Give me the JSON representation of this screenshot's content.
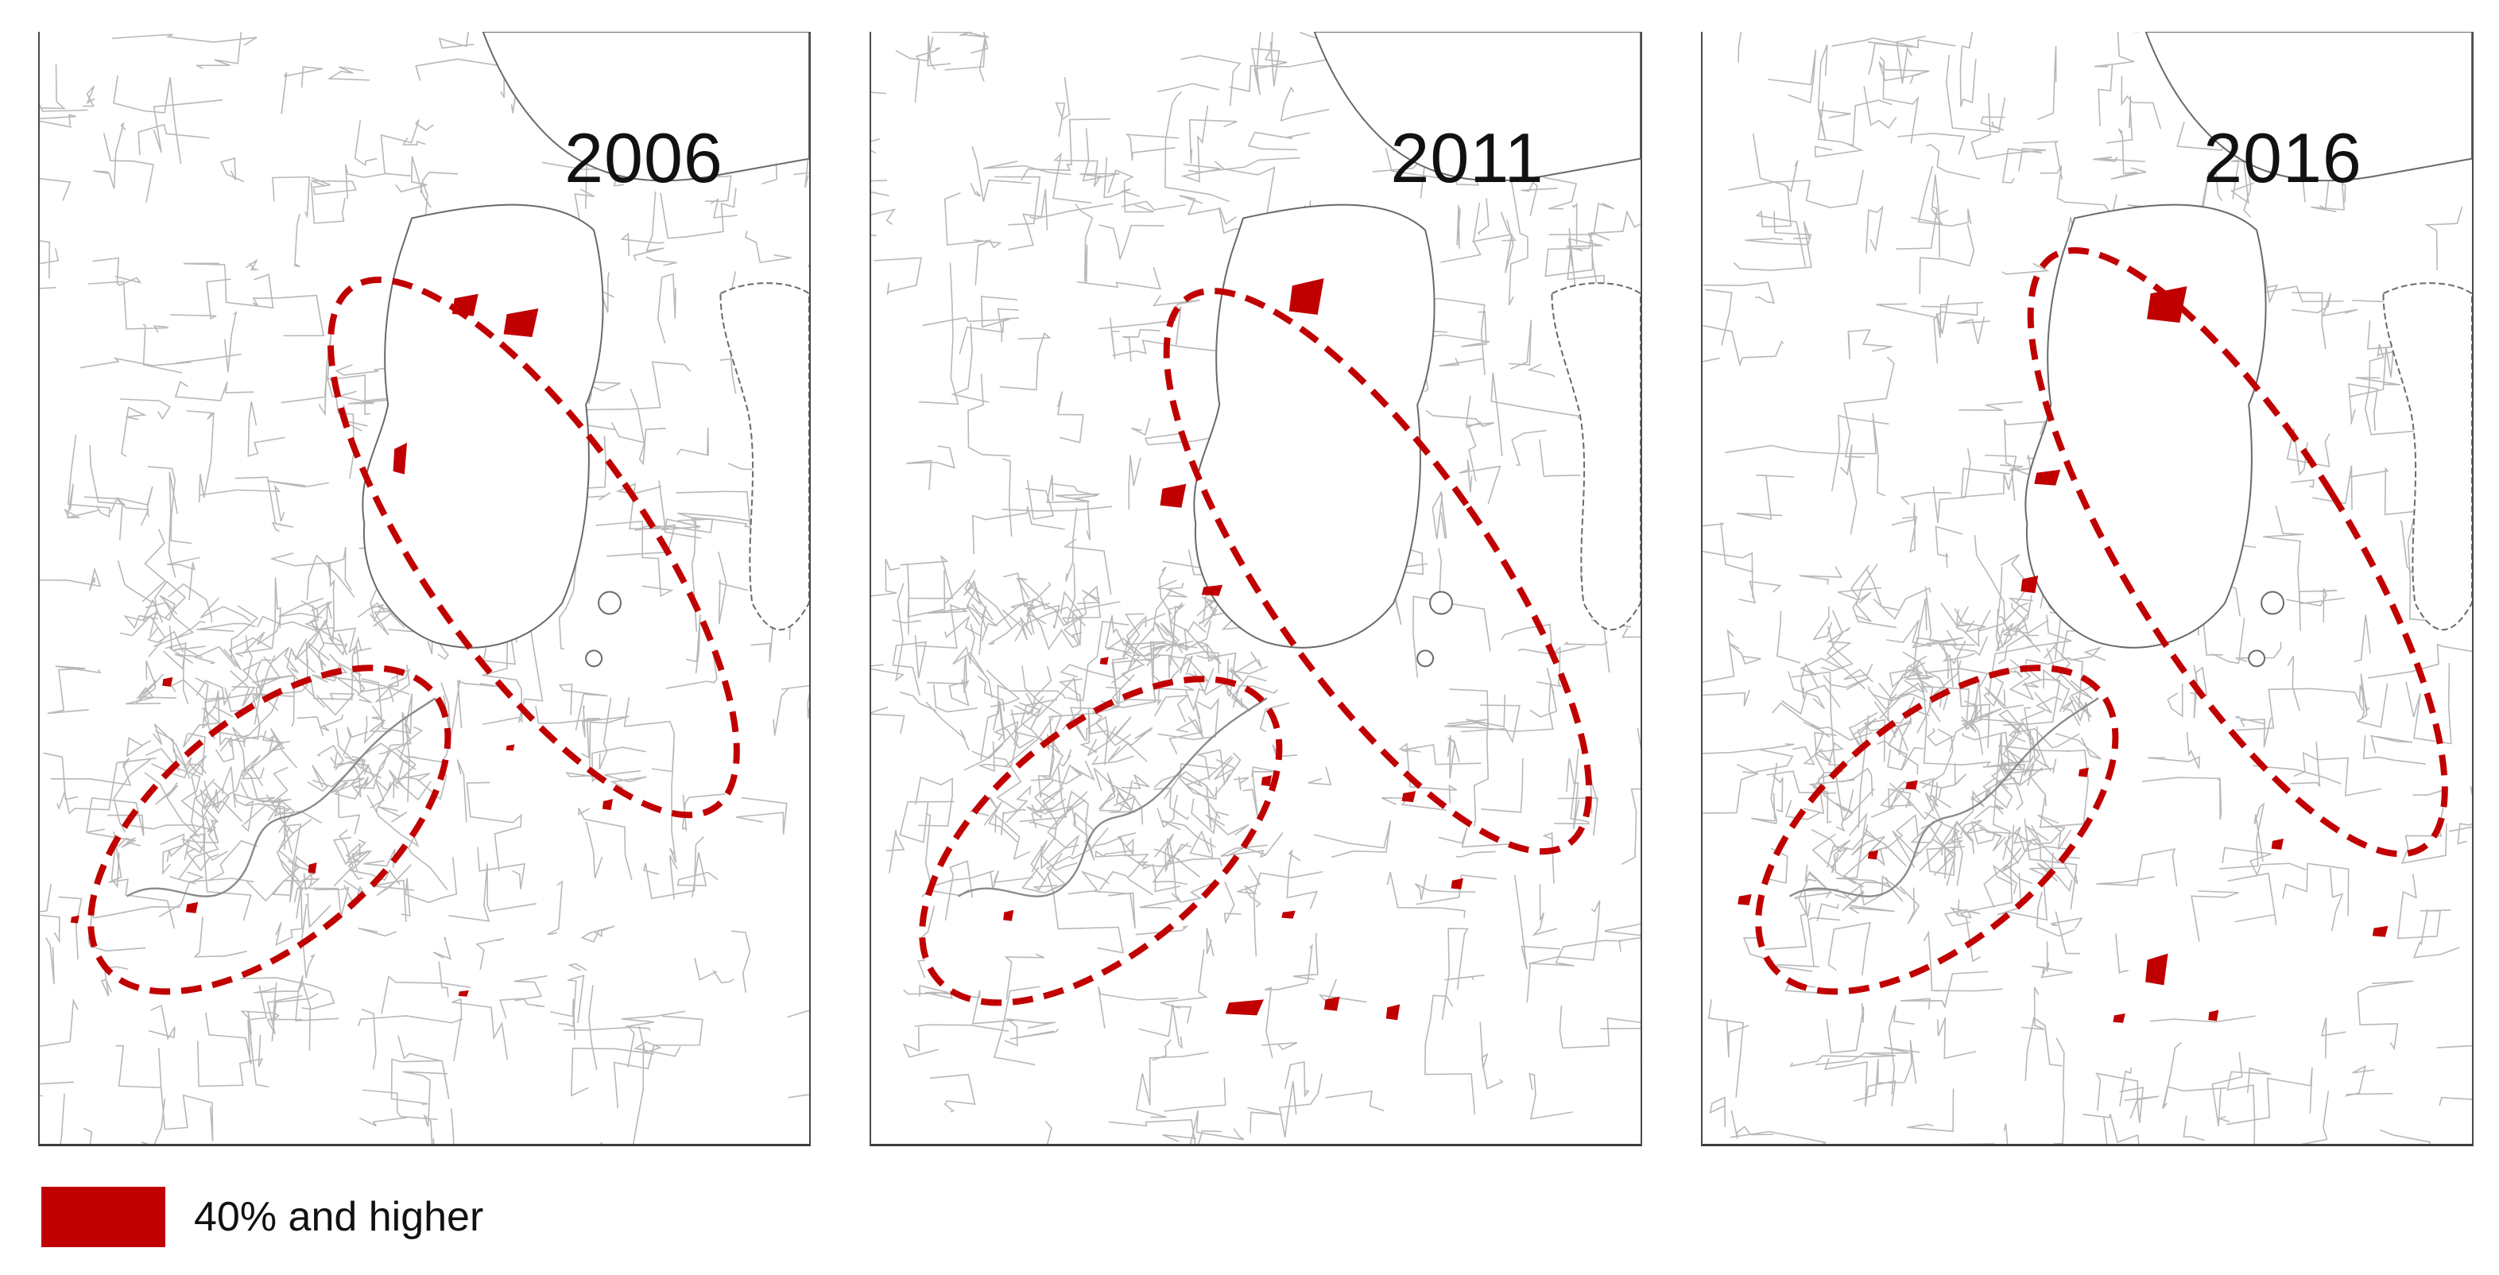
{
  "colors": {
    "hotspot": "#c00000",
    "boundary": "#b8b8b8",
    "coast": "#6a6a6a",
    "ellipse": "#c00000"
  },
  "panels": [
    {
      "year": "2006"
    },
    {
      "year": "2011"
    },
    {
      "year": "2016"
    }
  ],
  "legend": {
    "label": "40% and higher"
  }
}
